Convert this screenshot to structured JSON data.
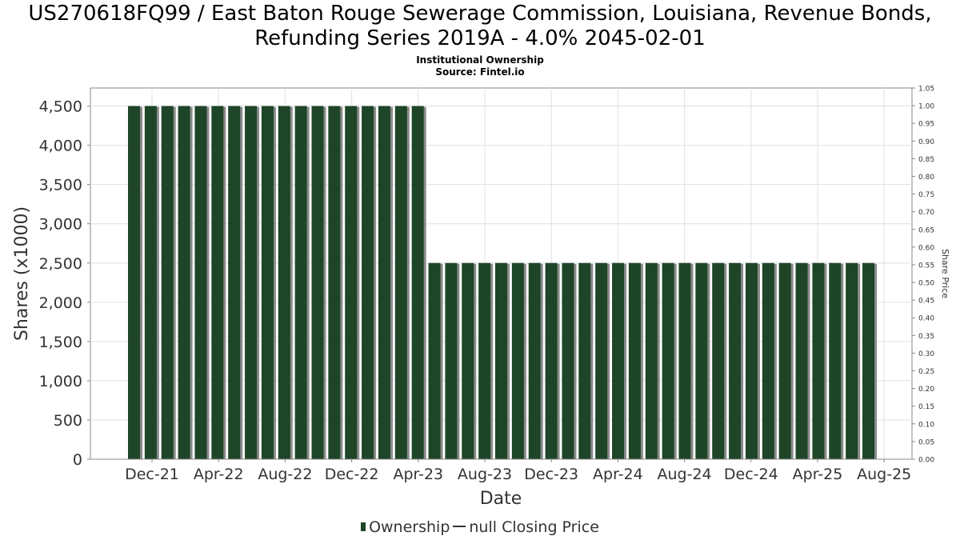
{
  "chart_data": {
    "type": "bar",
    "title": "US270618FQ99 / East Baton Rouge Sewerage Commission, Louisiana, Revenue Bonds, Refunding Series 2019A - 4.0% 2045-02-01",
    "subtitle_lines": [
      "Institutional Ownership",
      "Source: Fintel.io"
    ],
    "xlabel": "Date",
    "ylabel": "Shares (x1000)",
    "y2label": "Share Price",
    "x_tick_labels": [
      "Dec-21",
      "Apr-22",
      "Aug-22",
      "Dec-22",
      "Apr-23",
      "Aug-23",
      "Dec-23",
      "Apr-24",
      "Aug-24",
      "Dec-24",
      "Apr-25",
      "Aug-25"
    ],
    "y_tick_labels": [
      "0",
      "500",
      "1,000",
      "1,500",
      "2,000",
      "2,500",
      "3,000",
      "3,500",
      "4,000",
      "4,500"
    ],
    "y_ticks": [
      0,
      500,
      1000,
      1500,
      2000,
      2500,
      3000,
      3500,
      4000,
      4500
    ],
    "y2_tick_labels": [
      "0.00",
      "0.05",
      "0.10",
      "0.15",
      "0.20",
      "0.25",
      "0.30",
      "0.35",
      "0.40",
      "0.45",
      "0.50",
      "0.55",
      "0.60",
      "0.65",
      "0.70",
      "0.75",
      "0.80",
      "0.85",
      "0.90",
      "0.95",
      "1.00",
      "1.05"
    ],
    "ylim": [
      0,
      4730
    ],
    "y2lim": [
      0,
      1.05
    ],
    "grid": true,
    "legend_position": "bottom",
    "series": [
      {
        "name": "Ownership",
        "color": "#1e4528",
        "values": [
          4500,
          4500,
          4500,
          4500,
          4500,
          4500,
          4500,
          4500,
          4500,
          4500,
          4500,
          4500,
          4500,
          4500,
          4500,
          4500,
          4500,
          4500,
          2500,
          2500,
          2500,
          2500,
          2500,
          2500,
          2500,
          2500,
          2500,
          2500,
          2500,
          2500,
          2500,
          2500,
          2500,
          2500,
          2500,
          2500,
          2500,
          2500,
          2500,
          2500,
          2500,
          2500,
          2500,
          2500,
          2500
        ]
      },
      {
        "name": "null Closing Price",
        "color": "#333333",
        "values": []
      }
    ],
    "legend": [
      {
        "label": "Ownership"
      },
      {
        "label": "null Closing Price"
      }
    ]
  }
}
